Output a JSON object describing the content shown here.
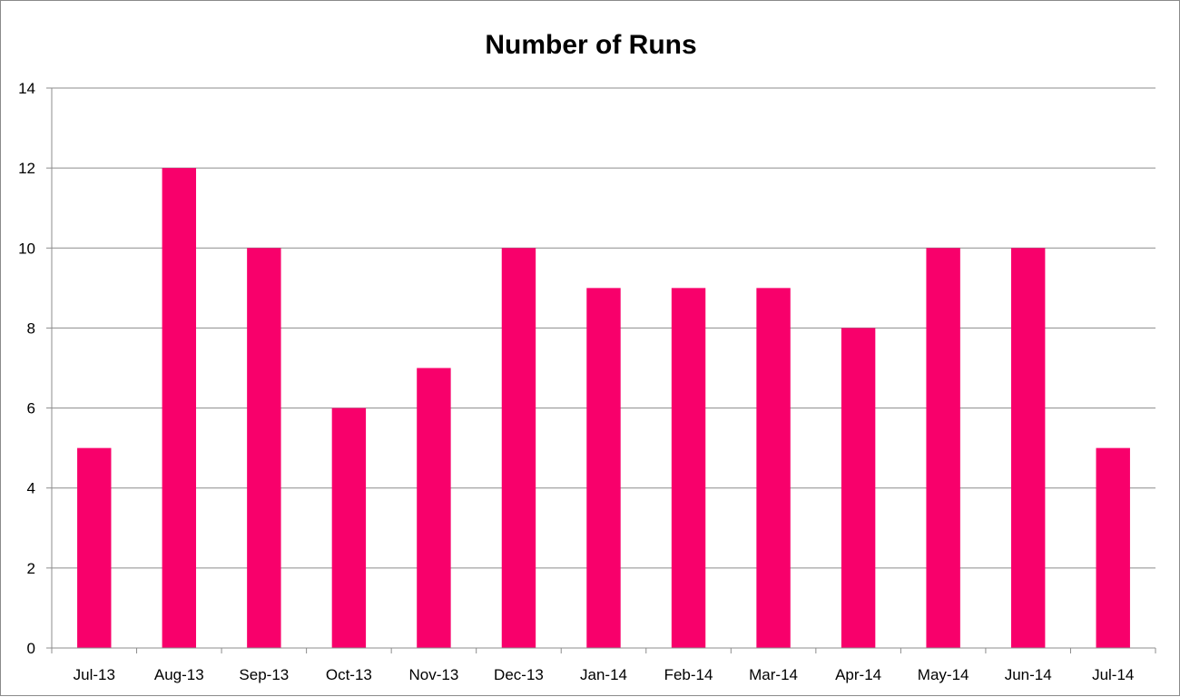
{
  "chart_data": {
    "type": "bar",
    "title": "Number of Runs",
    "xlabel": "",
    "ylabel": "",
    "categories": [
      "Jul-13",
      "Aug-13",
      "Sep-13",
      "Oct-13",
      "Nov-13",
      "Dec-13",
      "Jan-14",
      "Feb-14",
      "Mar-14",
      "Apr-14",
      "May-14",
      "Jun-14",
      "Jul-14"
    ],
    "values": [
      5,
      12,
      10,
      6,
      7,
      10,
      9,
      9,
      9,
      8,
      10,
      10,
      5
    ],
    "ylim": [
      0,
      14
    ],
    "yticks": [
      0,
      2,
      4,
      6,
      8,
      10,
      12,
      14
    ],
    "ytick_labels": [
      "0",
      "2",
      "4",
      "6",
      "8",
      "10",
      "12",
      "14"
    ],
    "grid": true,
    "legend": "none",
    "bar_color": "#f8006b"
  }
}
